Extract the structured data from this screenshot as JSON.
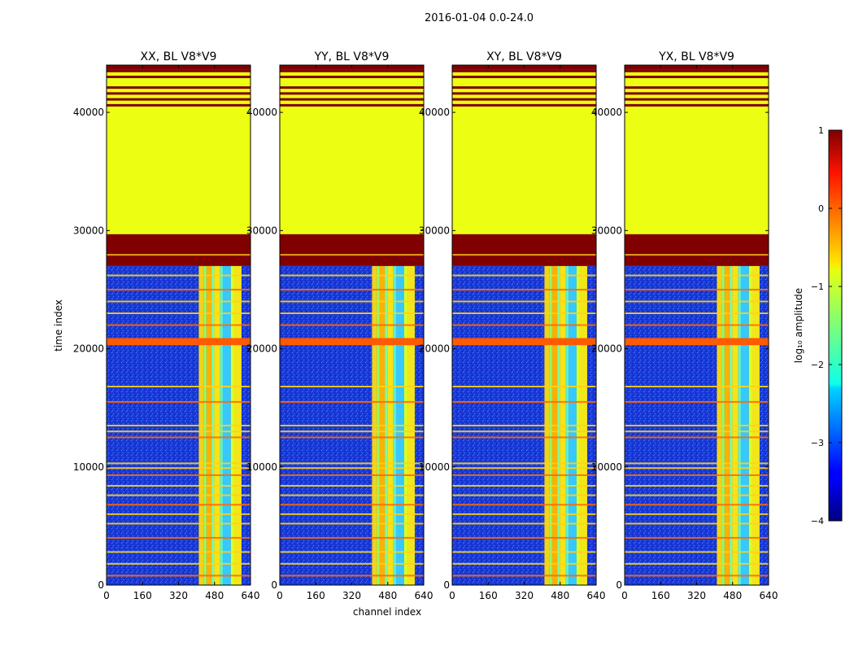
{
  "figure": {
    "suptitle": "2016-01-04 0.0-24.0"
  },
  "chart_data": {
    "type": "heatmap",
    "xlabel": "channel index",
    "ylabel": "time index",
    "x_ticks": [
      0,
      160,
      320,
      480,
      640
    ],
    "x_tick_labels": [
      "0",
      "160",
      "320",
      "480",
      "640"
    ],
    "xlim": [
      0,
      640
    ],
    "y_ticks": [
      0,
      10000,
      20000,
      30000,
      40000
    ],
    "y_tick_labels": [
      "0",
      "10000",
      "20000",
      "30000",
      "40000"
    ],
    "ylim": [
      0,
      44000
    ],
    "panels": [
      {
        "title": "XX, BL V8*V9"
      },
      {
        "title": "YY, BL V8*V9"
      },
      {
        "title": "XY, BL V8*V9"
      },
      {
        "title": "YX, BL V8*V9"
      }
    ],
    "regions": {
      "flagged_constant_value_log10": -0.97,
      "flagged_time_range": [
        29700,
        44000
      ],
      "saturated_time_range": [
        27000,
        29700
      ],
      "active_time_range": [
        0,
        27000
      ],
      "bright_channel_range": [
        410,
        600
      ],
      "background_log10_amplitude": -3.0
    },
    "horizontal_bands_time": [
      800,
      1800,
      2800,
      4000,
      5200,
      6000,
      6800,
      7600,
      8400,
      9300,
      9900,
      10300,
      12500,
      13000,
      13500,
      15500,
      16800,
      20700,
      22000,
      23000,
      24000,
      25000,
      26200
    ],
    "colorbar": {
      "label": "log₁₀ amplitude",
      "min": -4,
      "max": 1,
      "ticks": [
        1,
        0,
        -1,
        -2,
        -3,
        -4
      ],
      "tick_labels": [
        "1",
        "0",
        "−1",
        "−2",
        "−3",
        "−4"
      ],
      "colormap": "jet"
    }
  }
}
